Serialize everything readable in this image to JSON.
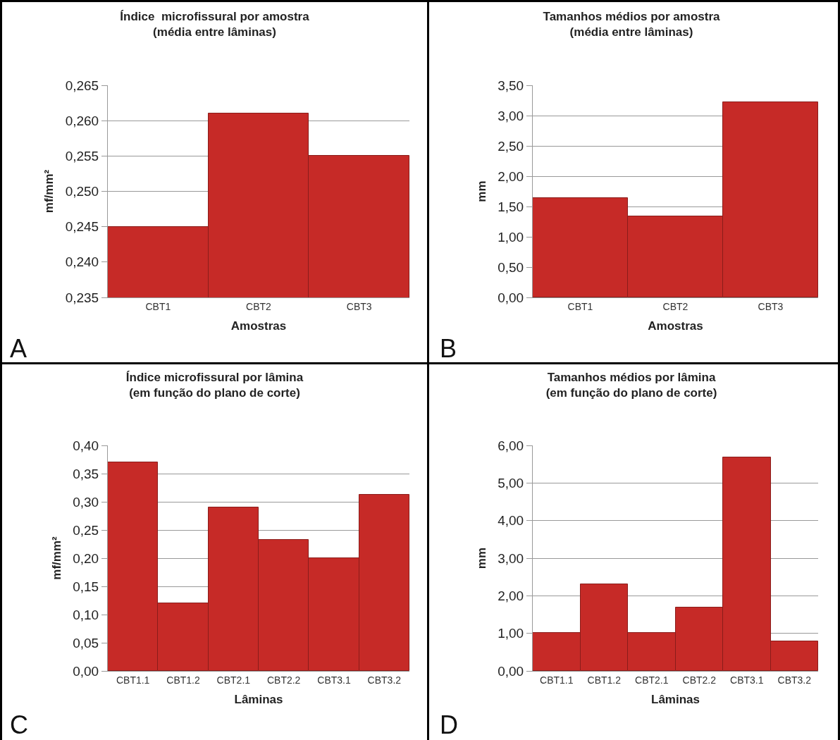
{
  "chart_data": [
    {
      "type": "bar",
      "title": "Índice  microfissural por amostra\n(média entre lâminas)",
      "xlabel": "Amostras",
      "ylabel": "mf/mm²",
      "categories": [
        "CBT1",
        "CBT2",
        "CBT3"
      ],
      "values": [
        0.245,
        0.261,
        0.255
      ],
      "color": "#c62a27",
      "ylim": [
        0.235,
        0.265
      ],
      "yticks": [
        {
          "value": 0.235,
          "label": "0,235"
        },
        {
          "value": 0.24,
          "label": "0,240"
        },
        {
          "value": 0.245,
          "label": "0,245"
        },
        {
          "value": 0.25,
          "label": "0,250"
        },
        {
          "value": 0.255,
          "label": "0,255"
        },
        {
          "value": 0.26,
          "label": "0,260"
        },
        {
          "value": 0.265,
          "label": "0,265"
        }
      ],
      "grid": "y",
      "annotations": [
        "A"
      ]
    },
    {
      "type": "bar",
      "title": "Tamanhos médios por amostra\n(média entre lâminas)",
      "xlabel": "Amostras",
      "ylabel": "mm",
      "categories": [
        "CBT1",
        "CBT2",
        "CBT3"
      ],
      "values": [
        1.64,
        1.34,
        3.22
      ],
      "color": "#c62a27",
      "ylim": [
        0,
        3.5
      ],
      "yticks": [
        {
          "value": 0,
          "label": "0,00"
        },
        {
          "value": 0.5,
          "label": "0,50"
        },
        {
          "value": 1,
          "label": "1,00"
        },
        {
          "value": 1.5,
          "label": "1,50"
        },
        {
          "value": 2,
          "label": "2,00"
        },
        {
          "value": 2.5,
          "label": "2,50"
        },
        {
          "value": 3,
          "label": "3,00"
        },
        {
          "value": 3.5,
          "label": "3,50"
        }
      ],
      "grid": "y",
      "annotations": [
        "B"
      ]
    },
    {
      "type": "bar",
      "title": "Índice microfissural por lâmina\n(em função do plano de corte)",
      "xlabel": "Lâminas",
      "ylabel": "mf/mm²",
      "categories": [
        "CBT1.1",
        "CBT1.2",
        "CBT2.1",
        "CBT2.2",
        "CBT3.1",
        "CBT3.2"
      ],
      "values": [
        0.37,
        0.12,
        0.29,
        0.233,
        0.2,
        0.313
      ],
      "color": "#c62a27",
      "ylim": [
        0,
        0.4
      ],
      "yticks": [
        {
          "value": 0,
          "label": "0,00"
        },
        {
          "value": 0.05,
          "label": "0,05"
        },
        {
          "value": 0.1,
          "label": "0,10"
        },
        {
          "value": 0.15,
          "label": "0,15"
        },
        {
          "value": 0.2,
          "label": "0,20"
        },
        {
          "value": 0.25,
          "label": "0,25"
        },
        {
          "value": 0.3,
          "label": "0,30"
        },
        {
          "value": 0.35,
          "label": "0,35"
        },
        {
          "value": 0.4,
          "label": "0,40"
        }
      ],
      "grid": "y",
      "annotations": [
        "C"
      ]
    },
    {
      "type": "bar",
      "title": "Tamanhos médios por lâmina\n(em função do plano de corte)",
      "xlabel": "Lâminas",
      "ylabel": "mm",
      "categories": [
        "CBT1.1",
        "CBT1.2",
        "CBT2.1",
        "CBT2.2",
        "CBT3.1",
        "CBT3.2"
      ],
      "values": [
        1.02,
        2.31,
        1.01,
        1.69,
        5.68,
        0.78
      ],
      "color": "#c62a27",
      "ylim": [
        0,
        6
      ],
      "yticks": [
        {
          "value": 0,
          "label": "0,00"
        },
        {
          "value": 1,
          "label": "1,00"
        },
        {
          "value": 2,
          "label": "2,00"
        },
        {
          "value": 3,
          "label": "3,00"
        },
        {
          "value": 4,
          "label": "4,00"
        },
        {
          "value": 5,
          "label": "5,00"
        },
        {
          "value": 6,
          "label": "6,00"
        }
      ],
      "grid": "y",
      "annotations": [
        "D"
      ]
    }
  ]
}
